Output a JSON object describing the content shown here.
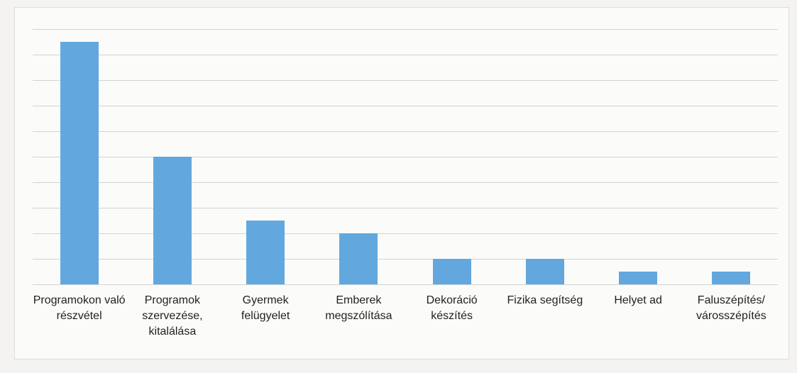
{
  "chart_data": {
    "type": "bar",
    "categories": [
      "Programokon való részvétel",
      "Programok szervezése, kitalálása",
      "Gyermek felügyelet",
      "Emberek megszólítása",
      "Dekoráció készítés",
      "Fizika segítség",
      "Helyet ad",
      "Faluszépítés/ városszépítés"
    ],
    "values": [
      9.5,
      5.0,
      2.5,
      2.0,
      1.0,
      1.0,
      0.5,
      0.5
    ],
    "color": "#62a8de",
    "ylim": [
      0,
      10
    ],
    "yticks": [
      0,
      1,
      2,
      3,
      4,
      5,
      6,
      7,
      8,
      9,
      10
    ],
    "grid": true
  }
}
